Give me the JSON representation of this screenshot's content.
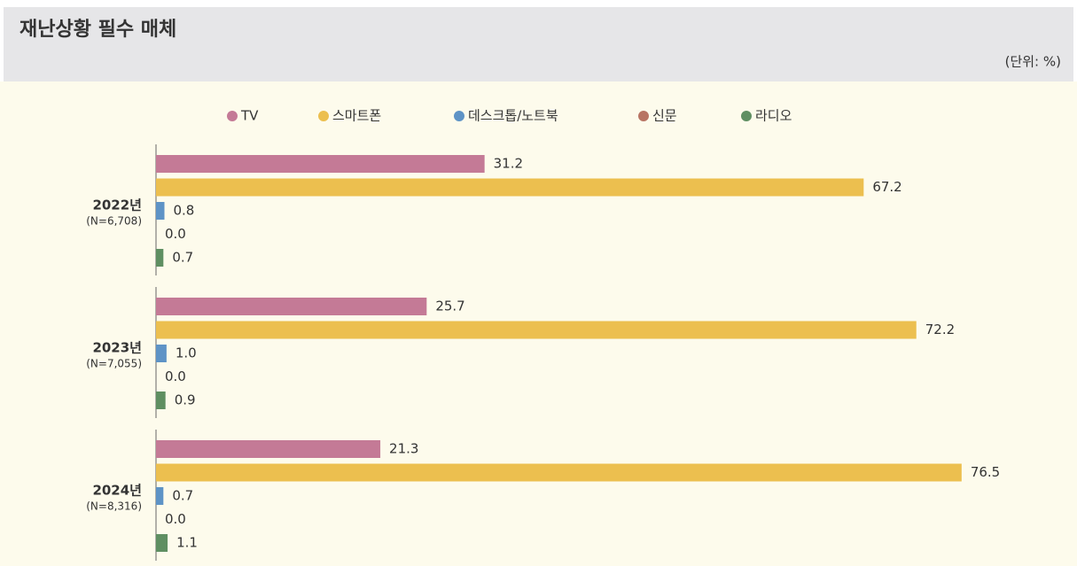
{
  "chart_data": {
    "type": "bar",
    "orientation": "horizontal",
    "title": "재난상황 필수 매체",
    "unit_note": "(단위: %)",
    "categories": [
      "2022년",
      "2023년",
      "2024년"
    ],
    "category_notes": [
      "(N=6,708)",
      "(N=7,055)",
      "(N=8,316)"
    ],
    "series": [
      {
        "name": "TV",
        "color": "#c47a96",
        "values": [
          31.2,
          25.7,
          21.3
        ],
        "value_labels": [
          "31.2",
          "25.7",
          "21.3"
        ]
      },
      {
        "name": "스마트폰",
        "color": "#ecbf4f",
        "values": [
          67.2,
          72.2,
          76.5
        ],
        "value_labels": [
          "67.2",
          "72.2",
          "76.5"
        ]
      },
      {
        "name": "데스크톱/노트북",
        "color": "#5e93c6",
        "values": [
          0.8,
          1.0,
          0.7
        ],
        "value_labels": [
          "0.8",
          "1.0",
          "0.7"
        ]
      },
      {
        "name": "신문",
        "color": "#b87463",
        "values": [
          0,
          0,
          0
        ],
        "value_labels": [
          "0.0",
          "0.0",
          "0.0"
        ]
      },
      {
        "name": "라디오",
        "color": "#5f8f62",
        "values": [
          0.7,
          0.9,
          1.1
        ],
        "value_labels": [
          "0.7",
          "0.9",
          "1.1"
        ]
      }
    ]
  }
}
